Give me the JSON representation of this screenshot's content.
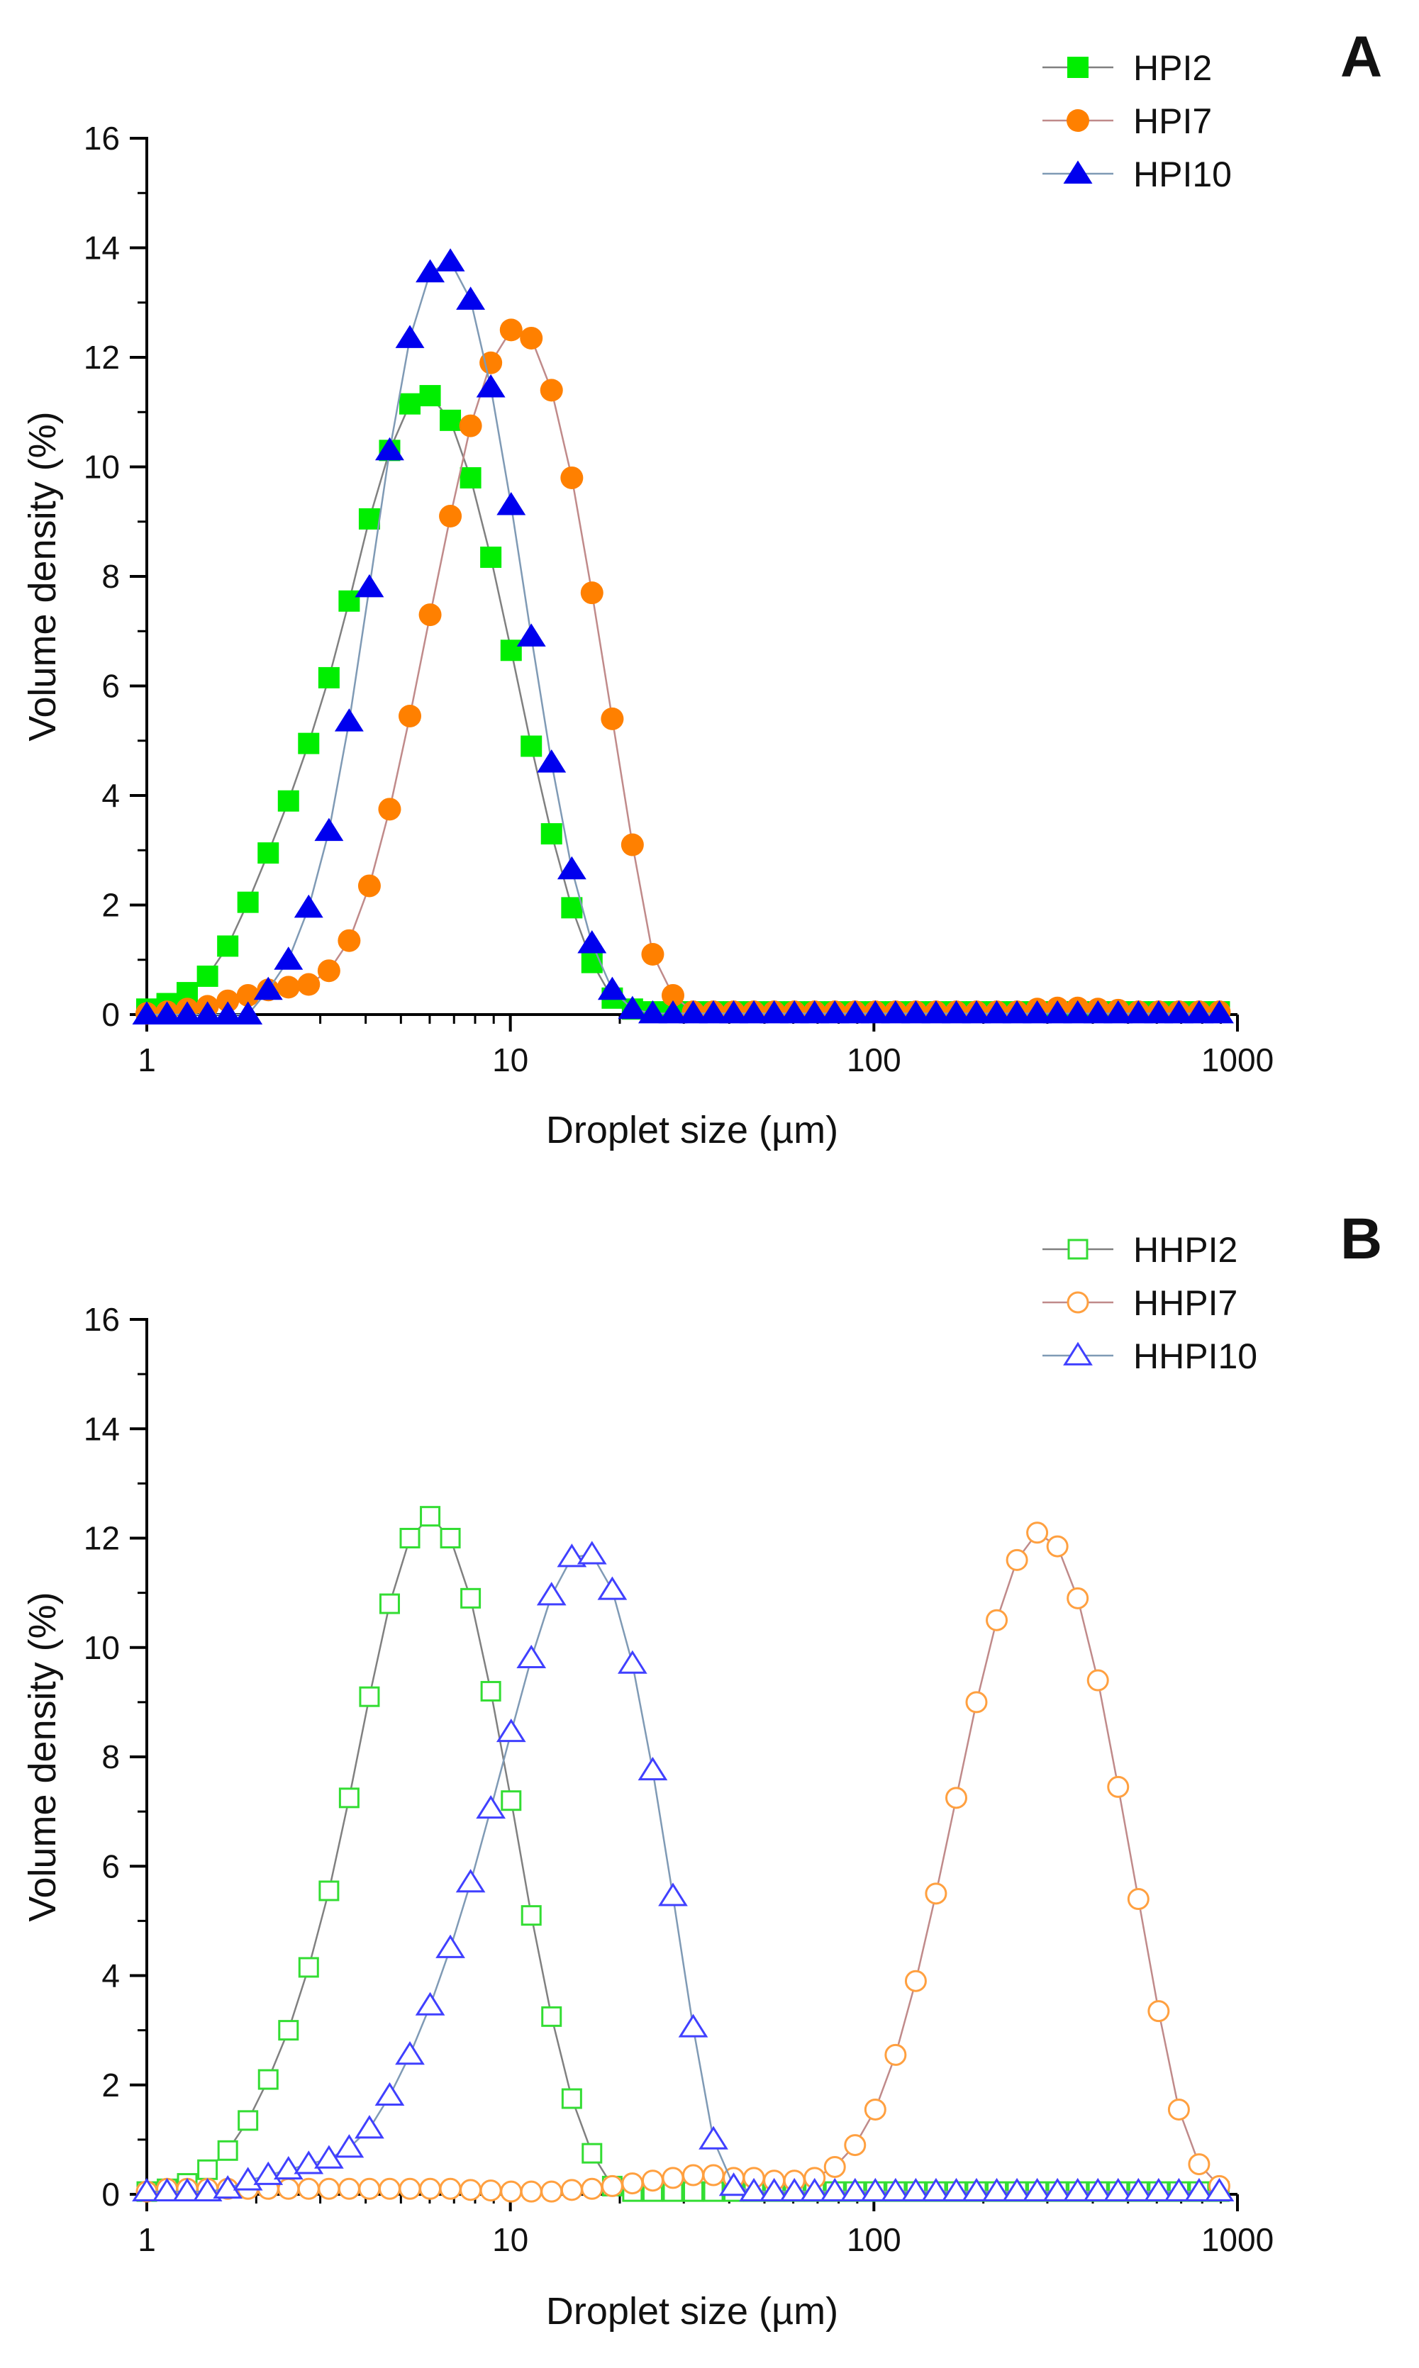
{
  "chart_data": [
    {
      "type": "scatter",
      "panel_label": "A",
      "xlabel": "Droplet size (µm)",
      "ylabel": "Volume density (%)",
      "xscale": "log",
      "xlim": [
        1,
        1000
      ],
      "ylim": [
        0,
        16
      ],
      "xticks": [
        "1",
        "10",
        "100",
        "1000"
      ],
      "yticks": [
        "0",
        "2",
        "4",
        "6",
        "8",
        "10",
        "12",
        "14",
        "16"
      ],
      "legend_position": "top-right",
      "x": [
        1.0,
        1.137,
        1.292,
        1.469,
        1.67,
        1.898,
        2.158,
        2.453,
        2.788,
        3.17,
        3.603,
        4.096,
        4.656,
        5.293,
        6.017,
        6.839,
        7.774,
        8.837,
        10.05,
        11.42,
        12.98,
        14.76,
        16.77,
        19.07,
        21.67,
        24.64,
        28.01,
        31.84,
        36.19,
        41.14,
        46.76,
        53.16,
        60.43,
        68.69,
        78.08,
        88.76,
        100.9,
        114.7,
        130.4,
        148.2,
        168.5,
        191.5,
        217.7,
        247.5,
        281.3,
        319.8,
        363.5,
        413.2,
        469.7,
        534.0,
        607.0,
        690.0,
        784.3,
        891.6
      ],
      "series": [
        {
          "name": "HPI2",
          "marker": "square-filled",
          "color": "#00ee00",
          "line_color": "#808080",
          "values": [
            0.1,
            0.2,
            0.4,
            0.7,
            1.25,
            2.05,
            2.95,
            3.9,
            4.95,
            6.15,
            7.55,
            9.05,
            10.3,
            11.15,
            11.3,
            10.85,
            9.8,
            8.35,
            6.65,
            4.9,
            3.3,
            1.95,
            0.95,
            0.3,
            0.1,
            0.05,
            0.05,
            0.05,
            0.05,
            0.05,
            0.05,
            0.05,
            0.05,
            0.05,
            0.05,
            0.05,
            0.05,
            0.05,
            0.05,
            0.05,
            0.05,
            0.05,
            0.05,
            0.05,
            0.05,
            0.05,
            0.05,
            0.05,
            0.05,
            0.05,
            0.05,
            0.05,
            0.05,
            0.05
          ]
        },
        {
          "name": "HPI7",
          "marker": "circle-filled",
          "color": "#ff8000",
          "line_color": "#c08a8a",
          "values": [
            0.02,
            0.05,
            0.1,
            0.15,
            0.25,
            0.35,
            0.45,
            0.5,
            0.55,
            0.8,
            1.35,
            2.35,
            3.75,
            5.45,
            7.3,
            9.1,
            10.75,
            11.9,
            12.5,
            12.35,
            11.4,
            9.8,
            7.7,
            5.4,
            3.1,
            1.1,
            0.35,
            0.05,
            0.05,
            0.05,
            0.05,
            0.05,
            0.05,
            0.05,
            0.05,
            0.05,
            0.05,
            0.05,
            0.05,
            0.05,
            0.05,
            0.05,
            0.05,
            0.05,
            0.1,
            0.12,
            0.12,
            0.1,
            0.08,
            0.05,
            0.05,
            0.05,
            0.05,
            0.05
          ]
        },
        {
          "name": "HPI10",
          "marker": "triangle-filled",
          "color": "#0000ee",
          "line_color": "#7f9ab5",
          "values": [
            0,
            0,
            0,
            0,
            0,
            0,
            0.45,
            1.0,
            1.95,
            3.35,
            5.35,
            7.8,
            10.3,
            12.35,
            13.55,
            13.75,
            13.05,
            11.45,
            9.3,
            6.9,
            4.6,
            2.65,
            1.3,
            0.45,
            0.1,
            0.02,
            0.02,
            0.02,
            0.02,
            0.02,
            0.02,
            0.02,
            0.02,
            0.02,
            0.02,
            0.02,
            0.02,
            0.02,
            0.02,
            0.02,
            0.02,
            0.02,
            0.02,
            0.02,
            0.02,
            0.02,
            0.02,
            0.02,
            0.02,
            0.02,
            0.02,
            0.02,
            0.02,
            0.02
          ]
        }
      ]
    },
    {
      "type": "scatter",
      "panel_label": "B",
      "xlabel": "Droplet size (µm)",
      "ylabel": "Volume density (%)",
      "xscale": "log",
      "xlim": [
        1,
        1000
      ],
      "ylim": [
        0,
        16
      ],
      "xticks": [
        "1",
        "10",
        "100",
        "1000"
      ],
      "yticks": [
        "0",
        "2",
        "4",
        "6",
        "8",
        "10",
        "12",
        "14",
        "16"
      ],
      "legend_position": "top-right",
      "x": [
        1.0,
        1.137,
        1.292,
        1.469,
        1.67,
        1.898,
        2.158,
        2.453,
        2.788,
        3.17,
        3.603,
        4.096,
        4.656,
        5.293,
        6.017,
        6.839,
        7.774,
        8.837,
        10.05,
        11.42,
        12.98,
        14.76,
        16.77,
        19.07,
        21.67,
        24.64,
        28.01,
        31.84,
        36.19,
        41.14,
        46.76,
        53.16,
        60.43,
        68.69,
        78.08,
        88.76,
        100.9,
        114.7,
        130.4,
        148.2,
        168.5,
        191.5,
        217.7,
        247.5,
        281.3,
        319.8,
        363.5,
        413.2,
        469.7,
        534.0,
        607.0,
        690.0,
        784.3,
        891.6
      ],
      "series": [
        {
          "name": "HHPI2",
          "marker": "square-open",
          "color": "#33dd33",
          "line_color": "#808080",
          "values": [
            0.05,
            0.1,
            0.2,
            0.45,
            0.8,
            1.35,
            2.1,
            3.0,
            4.15,
            5.55,
            7.25,
            9.1,
            10.8,
            12.0,
            12.4,
            12.0,
            10.9,
            9.2,
            7.2,
            5.1,
            3.25,
            1.75,
            0.75,
            0.15,
            0.05,
            0.05,
            0.05,
            0.05,
            0.05,
            0.05,
            0.05,
            0.05,
            0.05,
            0.05,
            0.05,
            0.05,
            0.05,
            0.05,
            0.05,
            0.05,
            0.05,
            0.05,
            0.05,
            0.05,
            0.05,
            0.05,
            0.05,
            0.05,
            0.05,
            0.05,
            0.05,
            0.05,
            0.05,
            0.05
          ]
        },
        {
          "name": "HHPI7",
          "marker": "circle-open",
          "color": "#ffa040",
          "line_color": "#c08a8a",
          "values": [
            0.05,
            0.1,
            0.1,
            0.1,
            0.1,
            0.1,
            0.1,
            0.1,
            0.1,
            0.1,
            0.1,
            0.1,
            0.1,
            0.1,
            0.1,
            0.1,
            0.08,
            0.07,
            0.05,
            0.05,
            0.05,
            0.08,
            0.1,
            0.15,
            0.2,
            0.25,
            0.3,
            0.35,
            0.35,
            0.3,
            0.3,
            0.25,
            0.25,
            0.3,
            0.5,
            0.9,
            1.55,
            2.55,
            3.9,
            5.5,
            7.25,
            9.0,
            10.5,
            11.6,
            12.1,
            11.85,
            10.9,
            9.4,
            7.45,
            5.4,
            3.35,
            1.55,
            0.55,
            0.15
          ]
        },
        {
          "name": "HHPI10",
          "marker": "triangle-open",
          "color": "#4040ff",
          "line_color": "#7f9ab5",
          "values": [
            0.05,
            0.05,
            0.05,
            0.05,
            0.1,
            0.25,
            0.35,
            0.45,
            0.55,
            0.65,
            0.85,
            1.2,
            1.8,
            2.55,
            3.45,
            4.5,
            5.7,
            7.05,
            8.45,
            9.8,
            10.95,
            11.65,
            11.7,
            11.05,
            9.7,
            7.75,
            5.45,
            3.05,
            1.0,
            0.15,
            0.05,
            0.05,
            0.05,
            0.05,
            0.05,
            0.05,
            0.05,
            0.05,
            0.05,
            0.05,
            0.05,
            0.05,
            0.05,
            0.05,
            0.05,
            0.05,
            0.05,
            0.05,
            0.05,
            0.05,
            0.05,
            0.05,
            0.05,
            0.05
          ]
        }
      ]
    }
  ]
}
